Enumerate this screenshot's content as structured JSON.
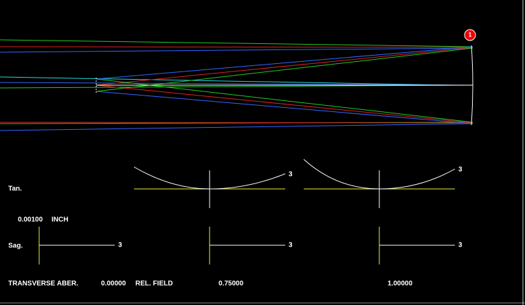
{
  "marker": "1",
  "tan_label": "Tan.",
  "sag_label": "Sag.",
  "scale": "0.00100",
  "unit": "INCH",
  "footer": {
    "title": "TRANSVERSE ABER.",
    "field0": "0.00000",
    "rel_field": "REL. FIELD",
    "field1": "0.75000",
    "field2": "1.00000"
  },
  "tan_plots": [
    {
      "label": "3"
    },
    {
      "label": "3"
    }
  ],
  "sag_plots": [
    {
      "label": "3"
    },
    {
      "label": "3"
    },
    {
      "label": "3"
    }
  ]
}
